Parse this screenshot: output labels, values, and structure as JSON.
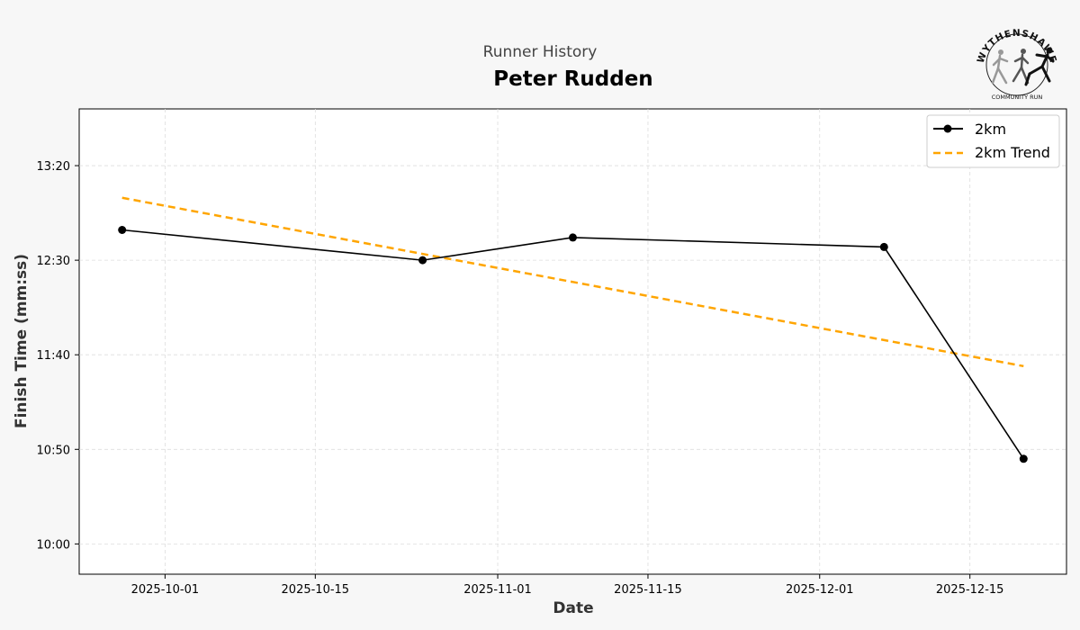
{
  "header": {
    "supertitle": "Runner History",
    "title": "Peter Rudden"
  },
  "logo": {
    "name": "wythenshawe-community-run-logo",
    "top_text": "WYTHENSHAWE",
    "bottom_text": "COMMUNITY RUN"
  },
  "chart_data": {
    "type": "line",
    "title": "Peter Rudden",
    "xlabel": "Date",
    "ylabel": "Finish Time (mm:ss)",
    "x_ticks": [
      "2025-10-01",
      "2025-10-15",
      "2025-11-01",
      "2025-11-15",
      "2025-12-01",
      "2025-12-15"
    ],
    "y_ticks": [
      "10:00",
      "10:50",
      "11:40",
      "12:30",
      "13:20"
    ],
    "y_tick_seconds": [
      600,
      650,
      700,
      750,
      800
    ],
    "xlim": [
      "2025-09-23",
      "2025-12-24"
    ],
    "ylim_seconds": [
      584,
      830
    ],
    "grid": true,
    "legend_position": "top-right",
    "series": [
      {
        "name": "2km",
        "style": "solid-with-markers",
        "color": "#000000",
        "points": [
          {
            "x": "2025-09-27",
            "y_seconds": 766
          },
          {
            "x": "2025-10-25",
            "y_seconds": 750
          },
          {
            "x": "2025-11-08",
            "y_seconds": 762
          },
          {
            "x": "2025-12-07",
            "y_seconds": 757
          },
          {
            "x": "2025-12-20",
            "y_seconds": 645
          }
        ]
      },
      {
        "name": "2km Trend",
        "style": "dashed",
        "color": "#ffa500",
        "points": [
          {
            "x": "2025-09-27",
            "y_seconds": 783
          },
          {
            "x": "2025-12-20",
            "y_seconds": 694
          }
        ]
      }
    ]
  }
}
